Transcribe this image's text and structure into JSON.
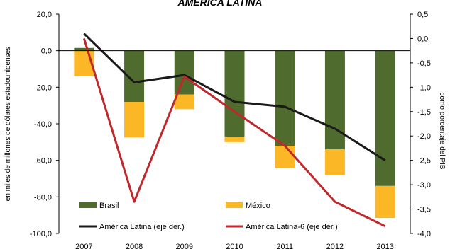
{
  "chart_data": {
    "type": "bar",
    "title": "AMÉRICA LATINA",
    "categories": [
      "2007",
      "2008",
      "2009",
      "2010",
      "2011",
      "2012",
      "2013"
    ],
    "ylabel": "en miles de millones de dólares estadounidenses",
    "y2label": "como porcentaje del PIB",
    "ylim": [
      -100,
      20
    ],
    "y2lim": [
      -4.0,
      0.5
    ],
    "yticks": [
      "20,0",
      "0,0",
      "-20,0",
      "-40,0",
      "-60,0",
      "-80,0",
      "-100,0"
    ],
    "y2ticks": [
      "0,5",
      "0,0",
      "-0,5",
      "-1,0",
      "-1,5",
      "-2,0",
      "-2,5",
      "-3,0",
      "-3,5",
      "-4,0"
    ],
    "stacked": true,
    "legend_position": "bottom-inside",
    "series": [
      {
        "name": "Brasil",
        "kind": "bar",
        "axis": "left",
        "color": "#4f6b2e",
        "values": [
          1.5,
          -28,
          -24,
          -47,
          -52,
          -54,
          -74
        ]
      },
      {
        "name": "México",
        "kind": "bar",
        "axis": "left",
        "color": "#fbb725",
        "values": [
          -14,
          -19.5,
          -8,
          -3,
          -12,
          -14,
          -17.5
        ]
      },
      {
        "name": "América Latina (eje der.)",
        "kind": "line",
        "axis": "right",
        "color": "#1a1a1a",
        "values": [
          0.1,
          -0.9,
          -0.75,
          -1.3,
          -1.4,
          -1.85,
          -2.5
        ]
      },
      {
        "name": "América Latina-6 (eje der.)",
        "kind": "line",
        "axis": "right",
        "color": "#c0282b",
        "values": [
          0.0,
          -3.35,
          -0.78,
          -1.5,
          -2.2,
          -3.35,
          -3.85
        ]
      }
    ]
  }
}
